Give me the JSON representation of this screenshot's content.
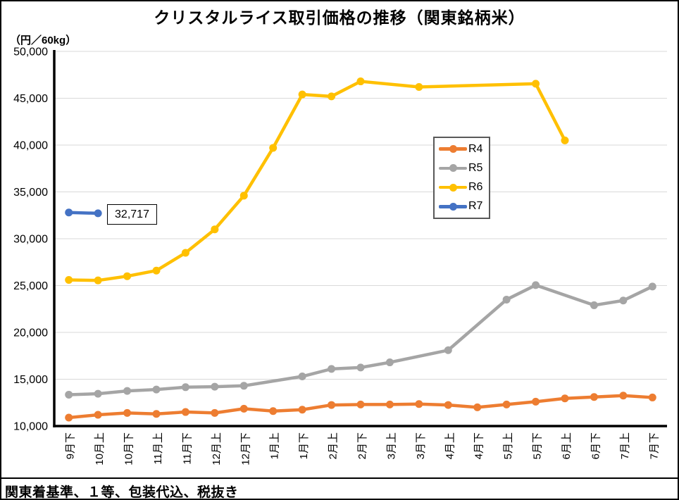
{
  "title": "クリスタルライス取引価格の推移（関東銘柄米）",
  "unit_label": "（円／60kg）",
  "footnote": "関東着基準、１等、包装代込、税抜き",
  "annotation": {
    "text": "32,717",
    "series": "R7",
    "category": "10月上"
  },
  "chart_data": {
    "type": "line",
    "title": "クリスタルライス取引価格の推移（関東銘柄米）",
    "ylabel": "（円／60kg）",
    "ylim": [
      10000,
      50000
    ],
    "ytick_step": 5000,
    "y_ticks": [
      "10,000",
      "15,000",
      "20,000",
      "25,000",
      "30,000",
      "35,000",
      "40,000",
      "45,000",
      "50,000"
    ],
    "grid": true,
    "grid_color": "#D9D9D9",
    "axis_color": "#000000",
    "legend_position": "center-right",
    "categories": [
      "9月下",
      "10月上",
      "10月下",
      "11月上",
      "11月下",
      "12月上",
      "12月下",
      "1月上",
      "1月下",
      "2月上",
      "2月下",
      "3月上",
      "3月下",
      "4月上",
      "4月下",
      "5月上",
      "5月下",
      "6月上",
      "6月下",
      "7月上",
      "7月下"
    ],
    "series": [
      {
        "name": "R4",
        "color": "#ED7D31",
        "values": [
          10900,
          11200,
          11400,
          11300,
          11500,
          11400,
          11850,
          11600,
          11750,
          12250,
          12300,
          12300,
          12350,
          12250,
          12000,
          12300,
          12600,
          12950,
          13100,
          13250,
          13050
        ]
      },
      {
        "name": "R5",
        "color": "#A5A5A5",
        "values": [
          13350,
          13450,
          13750,
          13900,
          14150,
          14200,
          14300,
          null,
          15300,
          16100,
          16250,
          16800,
          null,
          18100,
          null,
          23500,
          25050,
          null,
          22900,
          23400,
          24900
        ]
      },
      {
        "name": "R6",
        "color": "#FFC000",
        "values": [
          25600,
          25550,
          26000,
          26600,
          28500,
          31000,
          34600,
          39700,
          45400,
          45200,
          46800,
          null,
          46200,
          null,
          null,
          null,
          46550,
          40500,
          null,
          null,
          null
        ]
      },
      {
        "name": "R7",
        "color": "#4472C4",
        "values": [
          32800,
          32717,
          null,
          null,
          null,
          null,
          null,
          null,
          null,
          null,
          null,
          null,
          null,
          null,
          null,
          null,
          null,
          null,
          null,
          null,
          null
        ]
      }
    ]
  }
}
